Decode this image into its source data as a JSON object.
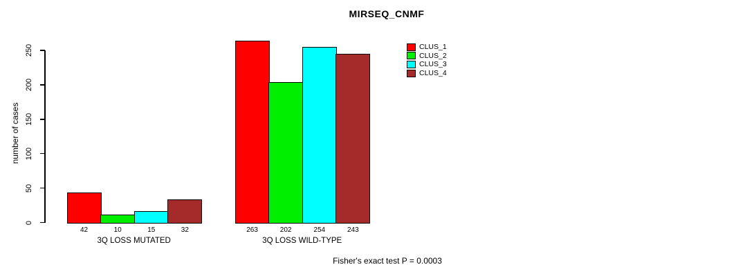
{
  "chart_data": {
    "type": "bar",
    "title": "MIRSEQ_CNMF",
    "ylabel": "number of cases",
    "annotation": "Fisher's exact test P = 0.0003",
    "categories": [
      "3Q LOSS MUTATED",
      "3Q LOSS WILD-TYPE"
    ],
    "series": [
      {
        "name": "CLUS_1",
        "color": "#FF0000",
        "values": [
          42,
          263
        ]
      },
      {
        "name": "CLUS_2",
        "color": "#00EE00",
        "values": [
          10,
          202
        ]
      },
      {
        "name": "CLUS_3",
        "color": "#00FFFF",
        "values": [
          15,
          254
        ]
      },
      {
        "name": "CLUS_4",
        "color": "#A52A2A",
        "values": [
          32,
          243
        ]
      }
    ],
    "yticks": [
      0,
      50,
      100,
      150,
      200,
      250
    ],
    "ylim": [
      0,
      263
    ],
    "grid": false,
    "legend_position": "top-right",
    "bar_value_labels": true,
    "axis_color": "#000000",
    "background_color": "#FFFFFF"
  }
}
